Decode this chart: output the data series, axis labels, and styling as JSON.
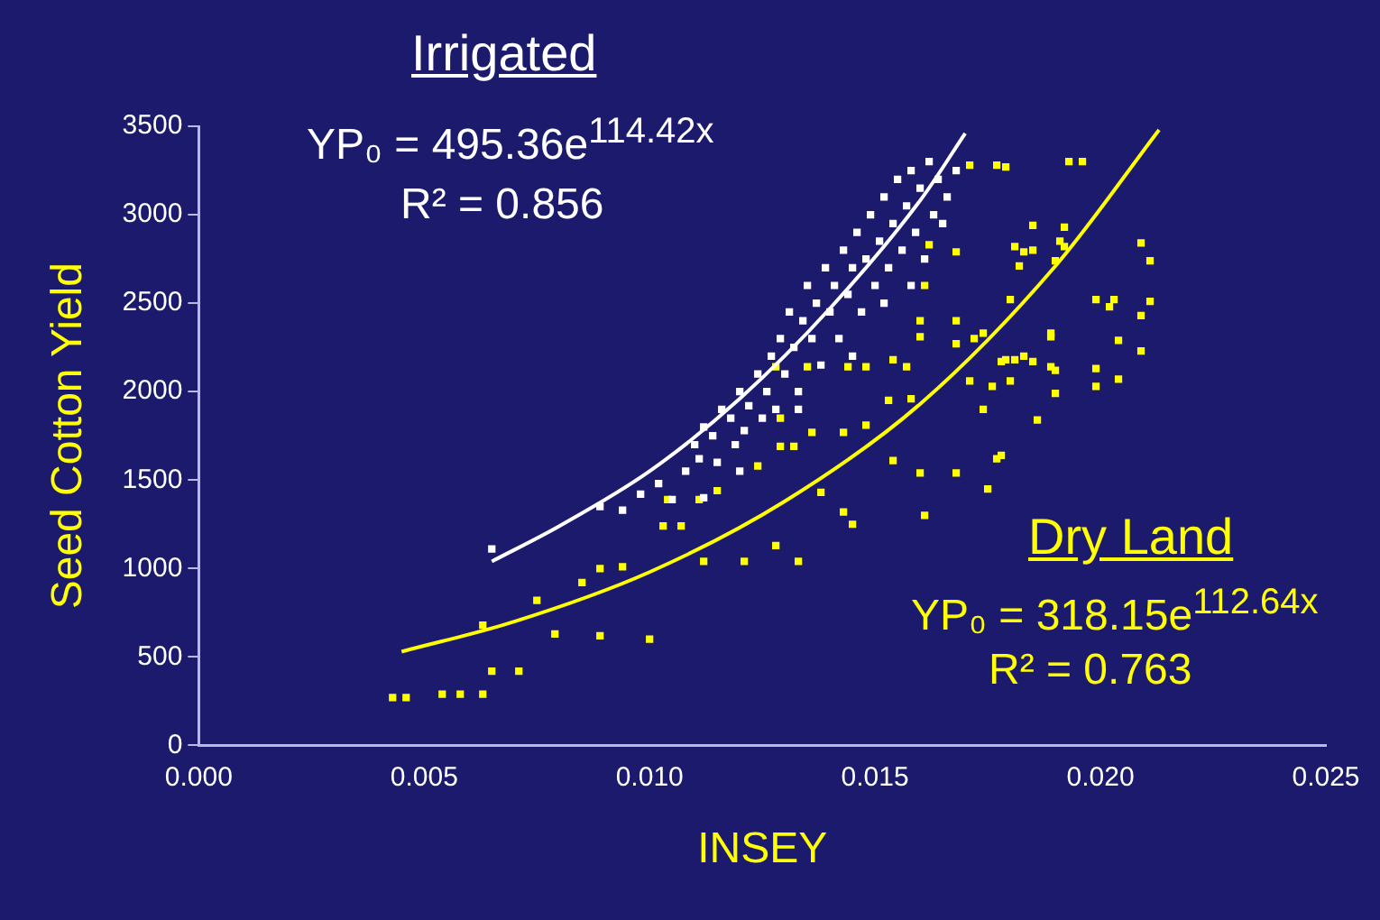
{
  "chart_data": {
    "type": "scatter",
    "xlabel": "INSEY",
    "ylabel": "Seed Cotton Yield",
    "xlim": [
      0,
      0.025
    ],
    "xticks": [
      {
        "value": 0,
        "label": "0.000"
      },
      {
        "value": 0.005,
        "label": "0.005"
      },
      {
        "value": 0.01,
        "label": "0.010"
      },
      {
        "value": 0.015,
        "label": "0.015"
      },
      {
        "value": 0.02,
        "label": "0.020"
      },
      {
        "value": 0.025,
        "label": "0.025"
      }
    ],
    "ylim": [
      0,
      3500
    ],
    "yticks": [
      0,
      500,
      1000,
      1500,
      2000,
      2500,
      3000,
      3500
    ],
    "grid": false,
    "legend": false,
    "marker": "square",
    "series": [
      {
        "name": "Irrigated",
        "color": "#ffffff",
        "x": [
          0.0065,
          0.0089,
          0.0094,
          0.0098,
          0.0102,
          0.0105,
          0.0108,
          0.011,
          0.0111,
          0.0112,
          0.0114,
          0.0115,
          0.0116,
          0.0118,
          0.0119,
          0.012,
          0.0121,
          0.0122,
          0.0124,
          0.0125,
          0.0126,
          0.0127,
          0.0128,
          0.0129,
          0.013,
          0.0131,
          0.0132,
          0.0133,
          0.0134,
          0.0135,
          0.0136,
          0.0137,
          0.0138,
          0.0139,
          0.014,
          0.0141,
          0.0142,
          0.0143,
          0.0144,
          0.0145,
          0.0146,
          0.0147,
          0.0148,
          0.0149,
          0.015,
          0.0151,
          0.0152,
          0.0153,
          0.0154,
          0.0155,
          0.0156,
          0.0157,
          0.0158,
          0.0159,
          0.016,
          0.0161,
          0.0162,
          0.0163,
          0.0164,
          0.0165,
          0.0166,
          0.0168,
          0.0112,
          0.012,
          0.0133,
          0.0145,
          0.0152,
          0.0158
        ],
        "values": [
          1110,
          1350,
          1330,
          1420,
          1480,
          1390,
          1550,
          1700,
          1620,
          1800,
          1750,
          1600,
          1900,
          1850,
          1700,
          2000,
          1780,
          1920,
          2100,
          1850,
          2000,
          2200,
          1900,
          2300,
          2100,
          2450,
          2250,
          2000,
          2400,
          2600,
          2300,
          2500,
          2150,
          2700,
          2450,
          2600,
          2300,
          2800,
          2550,
          2700,
          2900,
          2450,
          2750,
          3000,
          2600,
          2850,
          3100,
          2700,
          2950,
          3200,
          2800,
          3050,
          3250,
          2900,
          3150,
          2750,
          3300,
          3000,
          3200,
          2950,
          3100,
          3250,
          1400,
          1550,
          1900,
          2200,
          2500,
          2600
        ]
      },
      {
        "type": "line",
        "color": "#ffffff",
        "marker": "none",
        "x": [
          0.0065,
          0.008,
          0.01,
          0.012,
          0.014,
          0.016,
          0.017
        ],
        "values": [
          1040,
          1240,
          1550,
          1960,
          2470,
          3080,
          3460
        ]
      },
      {
        "name": "Dry Land",
        "color": "#ffff00",
        "x": [
          0.0043,
          0.0046,
          0.0054,
          0.0058,
          0.0063,
          0.0065,
          0.0071,
          0.0063,
          0.0075,
          0.0079,
          0.0085,
          0.0089,
          0.0089,
          0.0094,
          0.01,
          0.0112,
          0.0121,
          0.0128,
          0.0133,
          0.0103,
          0.0107,
          0.0104,
          0.0111,
          0.0115,
          0.0124,
          0.0129,
          0.0132,
          0.0136,
          0.0143,
          0.0148,
          0.0138,
          0.0143,
          0.0145,
          0.0154,
          0.016,
          0.0161,
          0.0168,
          0.0175,
          0.0177,
          0.0153,
          0.0158,
          0.0129,
          0.0128,
          0.0135,
          0.0144,
          0.0154,
          0.0157,
          0.0148,
          0.016,
          0.016,
          0.0168,
          0.0168,
          0.0172,
          0.0174,
          0.0178,
          0.0183,
          0.0185,
          0.019,
          0.0171,
          0.0174,
          0.018,
          0.018,
          0.0189,
          0.0183,
          0.0185,
          0.0182,
          0.019,
          0.0192,
          0.0168,
          0.0171,
          0.0177,
          0.0193,
          0.0196,
          0.0161,
          0.0162,
          0.0179,
          0.0209,
          0.0211,
          0.0199,
          0.0202,
          0.0203,
          0.0211,
          0.0209,
          0.0204,
          0.0209,
          0.0199,
          0.0204,
          0.0199,
          0.0189,
          0.0189,
          0.019,
          0.0186,
          0.0178,
          0.0181,
          0.0185,
          0.0192,
          0.0191,
          0.0179,
          0.0181,
          0.0176
        ],
        "values": [
          270,
          270,
          290,
          290,
          290,
          420,
          420,
          680,
          820,
          630,
          920,
          1000,
          620,
          1010,
          600,
          1040,
          1040,
          1130,
          1040,
          1240,
          1240,
          1390,
          1390,
          1440,
          1580,
          1690,
          1690,
          1770,
          1770,
          1810,
          1430,
          1320,
          1250,
          1610,
          1540,
          1300,
          1540,
          1450,
          1620,
          1950,
          1960,
          1850,
          2140,
          2140,
          2140,
          2180,
          2140,
          2140,
          2400,
          2310,
          2400,
          2270,
          2300,
          2330,
          2170,
          2200,
          2170,
          2120,
          2060,
          1900,
          2060,
          2520,
          2330,
          2790,
          2940,
          2710,
          2740,
          2820,
          2790,
          3280,
          3280,
          3300,
          3300,
          2600,
          2830,
          3270,
          2840,
          2740,
          2520,
          2480,
          2520,
          2510,
          2430,
          2290,
          2230,
          2130,
          2070,
          2030,
          2310,
          2140,
          1990,
          1840,
          1640,
          2820,
          2800,
          2930,
          2850,
          2180,
          2180,
          2030
        ]
      },
      {
        "type": "line",
        "color": "#ffff00",
        "marker": "none",
        "x": [
          0.0045,
          0.007,
          0.01,
          0.013,
          0.016,
          0.019,
          0.0213
        ],
        "values": [
          530,
          700,
          980,
          1380,
          1930,
          2710,
          3480
        ]
      }
    ],
    "annotations": [
      "YP₀ = 495.36e$^{114.42x}$",
      "R² = 0.856",
      "YP₀ = 318.15e$^{112.64x}$",
      "R² = 0.763"
    ]
  }
}
